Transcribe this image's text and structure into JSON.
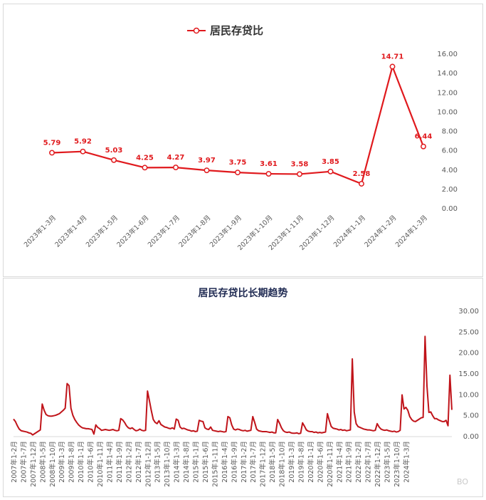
{
  "chart_data": [
    {
      "type": "line",
      "title": "居民存贷比",
      "legend": [
        "居民存贷比"
      ],
      "color": "#e0191d",
      "y_axis_position": "right",
      "ylim": [
        0,
        16
      ],
      "yticks": [
        "0.00",
        "2.00",
        "4.00",
        "6.00",
        "8.00",
        "10.00",
        "12.00",
        "14.00",
        "16.00"
      ],
      "categories": [
        "2023年1-3月",
        "2023年1-4月",
        "2023年1-5月",
        "2023年1-6月",
        "2023年1-7月",
        "2023年1-8月",
        "2023年1-9月",
        "2023年1-10月",
        "2023年1-11月",
        "2023年1-12月",
        "2024年1-1月",
        "2024年1-2月",
        "2024年1-3月"
      ],
      "values": [
        5.79,
        5.92,
        5.03,
        4.25,
        4.27,
        3.97,
        3.75,
        3.61,
        3.58,
        3.85,
        2.58,
        14.71,
        6.44
      ],
      "value_labels": [
        "5.79",
        "5.92",
        "5.03",
        "4.25",
        "4.27",
        "3.97",
        "3.75",
        "3.61",
        "3.58",
        "3.85",
        "2.58",
        "14.71",
        "6.44"
      ]
    },
    {
      "type": "line",
      "title": "居民存贷比长期趋势",
      "color": "#c0141a",
      "y_axis_position": "right",
      "ylim": [
        0,
        30
      ],
      "yticks": [
        "0.00",
        "5.00",
        "10.00",
        "15.00",
        "20.00",
        "25.00",
        "30.00"
      ],
      "x_tick_labels": [
        "2007年1-2月",
        "2007年1-7月",
        "2007年1-12月",
        "2008年1-5月",
        "2008年1-10月",
        "2009年1-3月",
        "2009年1-8月",
        "2010年1-1月",
        "2010年1-6月",
        "2010年1-11月",
        "2011年1-4月",
        "2011年1-9月",
        "2012年1-2月",
        "2012年1-7月",
        "2012年1-12月",
        "2013年1-5月",
        "2013年1-10月",
        "2014年1-3月",
        "2014年1-8月",
        "2015年1-1月",
        "2015年1-6月",
        "2015年1-11月",
        "2016年1-4月",
        "2016年1-9月",
        "2017年1-2月",
        "2017年1-7月",
        "2017年1-12月",
        "2018年1-5月",
        "2018年1-10月",
        "2019年1-3月",
        "2019年1-8月",
        "2020年1-1月",
        "2020年1-6月",
        "2020年1-11月",
        "2021年1-4月",
        "2021年1-9月",
        "2022年1-2月",
        "2022年1-7月",
        "2022年1-12月",
        "2023年1-5月",
        "2023年1-10月",
        "2024年1-3月"
      ],
      "values": [
        4.2,
        3.6,
        2.6,
        1.8,
        1.4,
        1.3,
        1.2,
        1.1,
        0.9,
        0.8,
        0.4,
        0.7,
        1.0,
        1.3,
        1.6,
        7.8,
        6.3,
        5.3,
        5.0,
        4.9,
        4.9,
        5.0,
        5.1,
        5.3,
        5.5,
        5.9,
        6.3,
        6.8,
        12.7,
        12.2,
        6.8,
        5.1,
        4.1,
        3.4,
        2.8,
        2.4,
        2.1,
        2.0,
        1.9,
        1.9,
        1.8,
        1.7,
        0.6,
        2.8,
        2.2,
        1.9,
        1.5,
        1.6,
        1.7,
        1.6,
        1.5,
        1.6,
        1.7,
        1.5,
        1.4,
        1.5,
        4.3,
        4.0,
        3.4,
        2.6,
        2.1,
        1.9,
        2.1,
        1.7,
        1.4,
        1.5,
        1.8,
        1.5,
        1.4,
        1.5,
        10.9,
        8.6,
        6.2,
        4.1,
        3.4,
        3.1,
        3.8,
        2.9,
        2.6,
        2.3,
        2.2,
        2.0,
        1.9,
        2.1,
        1.8,
        4.2,
        3.9,
        2.3,
        1.9,
        2.0,
        1.8,
        1.6,
        1.5,
        1.3,
        1.4,
        1.2,
        1.3,
        3.9,
        3.7,
        3.6,
        2.1,
        1.8,
        1.7,
        2.3,
        1.5,
        1.4,
        1.3,
        1.2,
        1.3,
        1.2,
        1.1,
        1.2,
        4.8,
        4.5,
        2.8,
        1.8,
        1.6,
        1.8,
        1.7,
        1.5,
        1.4,
        1.5,
        1.3,
        1.4,
        1.5,
        4.8,
        3.4,
        1.8,
        1.4,
        1.3,
        1.2,
        1.2,
        1.2,
        1.1,
        1.0,
        1.1,
        0.9,
        0.9,
        4.1,
        3.2,
        2.1,
        1.4,
        1.1,
        1.0,
        1.1,
        0.9,
        0.8,
        0.8,
        0.9,
        0.7,
        0.8,
        3.3,
        2.5,
        1.6,
        1.3,
        1.2,
        1.2,
        1.0,
        1.1,
        0.9,
        1.0,
        0.9,
        1.0,
        1.1,
        5.5,
        3.8,
        2.4,
        2.0,
        1.9,
        1.8,
        1.6,
        1.7,
        1.5,
        1.6,
        1.4,
        1.5,
        1.6,
        18.6,
        5.9,
        3.1,
        2.4,
        2.2,
        2.0,
        1.8,
        1.7,
        1.6,
        1.6,
        1.5,
        1.4,
        1.5,
        3.1,
        2.3,
        1.8,
        1.6,
        1.5,
        1.6,
        1.4,
        1.3,
        1.2,
        1.3,
        1.1,
        1.2,
        1.5,
        10.0,
        6.6,
        7.0,
        6.3,
        4.8,
        4.1,
        3.7,
        3.6,
        3.9,
        4.2,
        4.5,
        4.6,
        24.0,
        12.1,
        5.8,
        5.9,
        5.0,
        4.3,
        4.3,
        4.0,
        3.8,
        3.6,
        3.6,
        3.9,
        2.6,
        14.7,
        6.4
      ]
    }
  ],
  "watermark": "BO"
}
